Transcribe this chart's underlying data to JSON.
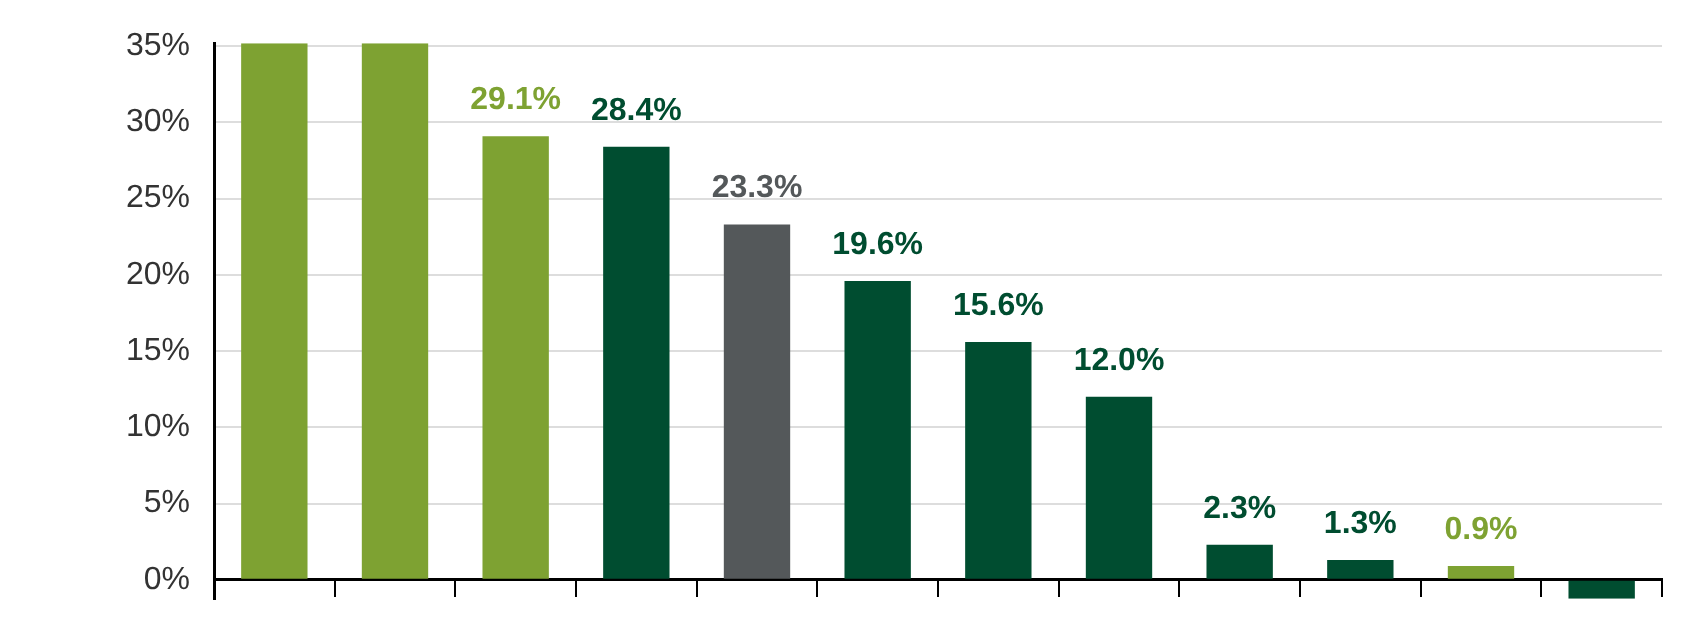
{
  "chart_data": {
    "type": "bar",
    "categories": [
      null,
      null,
      null,
      null,
      null,
      null,
      null,
      null,
      null,
      null,
      null,
      null
    ],
    "values": [
      35.2,
      35.2,
      29.1,
      28.4,
      23.3,
      19.6,
      15.6,
      12.0,
      2.3,
      1.3,
      0.9,
      -1.25
    ],
    "colors": [
      "#7ea232",
      "#7ea232",
      "#7ea232",
      "#004d30",
      "#54585a",
      "#004d30",
      "#004d30",
      "#004d30",
      "#004d30",
      "#004d30",
      "#7ea232",
      "#004d30"
    ],
    "value_labels": [
      null,
      null,
      "29.1%",
      "28.4%",
      "23.3%",
      "19.6%",
      "15.6%",
      "12.0%",
      "2.3%",
      "1.3%",
      "0.9%",
      null
    ],
    "ylim": [
      -1.25,
      35.2
    ],
    "yticks": [
      {
        "value": 0,
        "label": "0%"
      },
      {
        "value": 5,
        "label": "5%"
      },
      {
        "value": 10,
        "label": "10%"
      },
      {
        "value": 15,
        "label": "15%"
      },
      {
        "value": 20,
        "label": "20%"
      },
      {
        "value": 25,
        "label": "25%"
      },
      {
        "value": 30,
        "label": "30%"
      },
      {
        "value": 35,
        "label": "35%"
      }
    ],
    "grid": "y"
  }
}
